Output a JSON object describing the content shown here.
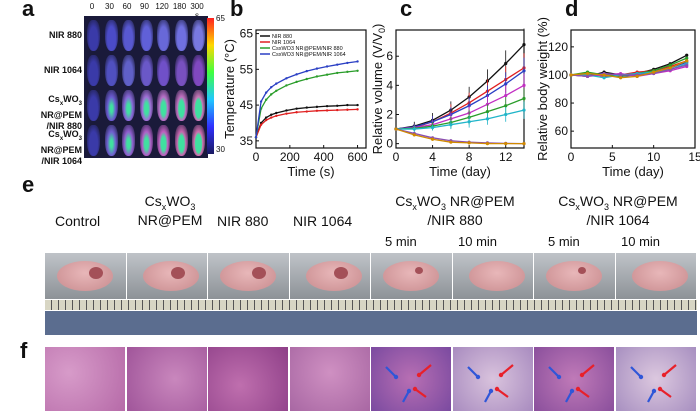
{
  "panel_a": {
    "label": "a",
    "times": [
      "0",
      "30",
      "60",
      "90",
      "120",
      "180",
      "300 s"
    ],
    "rows": [
      "NIR 880",
      "NIR 1064",
      "CsxWO3 NR@PEM/NIR 880",
      "CsxWO3 NR@PEM/NIR 1064"
    ],
    "row_labels": [
      {
        "l1": "NIR 880",
        "l2": ""
      },
      {
        "l1": "NIR 1064",
        "l2": ""
      },
      {
        "l1": "Cs",
        "sub": "x",
        "l1b": "WO",
        "sub2": "3",
        "l1c": " NR@PEM",
        "l2": "/NIR 880"
      },
      {
        "l1": "Cs",
        "sub": "x",
        "l1b": "WO",
        "sub2": "3",
        "l1c": " NR@PEM",
        "l2": "/NIR 1064"
      }
    ],
    "colorbar_label": "Temperature (°C)",
    "colorbar_ticks": [
      "65",
      "30"
    ]
  },
  "panel_b": {
    "label": "b",
    "chart_data": {
      "type": "line",
      "xlabel": "Time (s)",
      "ylabel": "Temperature (°C)",
      "xlim": [
        0,
        650
      ],
      "ylim": [
        33,
        66
      ],
      "xticks": [
        0,
        200,
        400,
        600
      ],
      "yticks": [
        35,
        45,
        55,
        65
      ],
      "legend": [
        "NIR 880",
        "NIR 1064",
        "CsxWO3 NR@PEM/NIR 880",
        "CsxWO3 NR@PEM/NIR 1064"
      ],
      "legend_placement": "top-left",
      "series": [
        {
          "name": "NIR 880",
          "color": "#111111",
          "x": [
            0,
            30,
            60,
            90,
            120,
            180,
            240,
            300,
            360,
            420,
            480,
            540,
            600
          ],
          "y": [
            36,
            40,
            41.5,
            42.3,
            42.8,
            43.5,
            44,
            44.3,
            44.5,
            44.7,
            44.8,
            45,
            45
          ]
        },
        {
          "name": "NIR 1064",
          "color": "#e02020",
          "x": [
            0,
            30,
            60,
            90,
            120,
            180,
            240,
            300,
            360,
            420,
            480,
            540,
            600
          ],
          "y": [
            36,
            39.5,
            40.8,
            41.5,
            42,
            42.6,
            43,
            43.2,
            43.4,
            43.5,
            43.6,
            43.7,
            43.8
          ]
        },
        {
          "name": "CsxWO3 NR@PEM/NIR 880",
          "color": "#2a9d2a",
          "x": [
            0,
            30,
            60,
            90,
            120,
            180,
            240,
            300,
            360,
            420,
            480,
            540,
            600
          ],
          "y": [
            36,
            44,
            46.5,
            48,
            49,
            50.5,
            51.5,
            52.3,
            53,
            53.5,
            54,
            54.3,
            54.6
          ]
        },
        {
          "name": "CsxWO3 NR@PEM/NIR 1064",
          "color": "#2a3fc4",
          "x": [
            0,
            30,
            60,
            90,
            120,
            180,
            240,
            300,
            360,
            420,
            480,
            540,
            600
          ],
          "y": [
            36,
            46,
            48.5,
            50,
            51,
            52.5,
            53.6,
            54.5,
            55.2,
            55.8,
            56.3,
            56.8,
            57.2
          ]
        }
      ]
    }
  },
  "panel_c": {
    "label": "c",
    "chart_data": {
      "type": "line",
      "xlabel": "Time (day)",
      "ylabel": "Relative volume (V/V",
      "ylabel_sub": "0",
      "ylabel_end": ")",
      "xlim": [
        0,
        14
      ],
      "ylim": [
        -0.3,
        7.8
      ],
      "xticks": [
        0,
        4,
        8,
        12
      ],
      "yticks": [
        0,
        2,
        4,
        6
      ],
      "x": [
        0,
        2,
        4,
        6,
        8,
        10,
        12,
        14
      ],
      "series": [
        {
          "color": "#111111",
          "y": [
            1,
            1.2,
            1.6,
            2.3,
            3.2,
            4.3,
            5.5,
            6.8
          ],
          "err": [
            0.1,
            0.3,
            0.5,
            0.6,
            0.7,
            0.8,
            0.9,
            1.1
          ]
        },
        {
          "color": "#e02020",
          "y": [
            1,
            1.1,
            1.5,
            2.1,
            2.8,
            3.6,
            4.4,
            5.2
          ],
          "err": [
            0.1,
            0.2,
            0.4,
            0.6,
            0.7,
            0.8,
            0.9,
            1.0
          ]
        },
        {
          "color": "#2a3fc4",
          "y": [
            1,
            1.15,
            1.5,
            2.0,
            2.6,
            3.3,
            4.1,
            5.0
          ],
          "err": [
            0.1,
            0.2,
            0.4,
            0.5,
            0.6,
            0.7,
            0.8,
            0.9
          ]
        },
        {
          "color": "#c22fc2",
          "y": [
            1,
            1.1,
            1.3,
            1.7,
            2.1,
            2.7,
            3.3,
            4.0
          ],
          "err": [
            0.1,
            0.2,
            0.3,
            0.4,
            0.5,
            0.6,
            0.7,
            0.8
          ]
        },
        {
          "color": "#2a9d2a",
          "y": [
            1,
            1.05,
            1.2,
            1.45,
            1.8,
            2.2,
            2.6,
            3.1
          ],
          "err": [
            0.1,
            0.2,
            0.3,
            0.4,
            0.5,
            0.5,
            0.6,
            0.7
          ]
        },
        {
          "color": "#20b5c9",
          "y": [
            1,
            1,
            1.1,
            1.3,
            1.5,
            1.7,
            2.0,
            2.3
          ],
          "err": [
            0.1,
            0.2,
            0.2,
            0.3,
            0.4,
            0.4,
            0.5,
            0.6
          ]
        },
        {
          "color": "#8a4fb0",
          "y": [
            1,
            0.7,
            0.4,
            0.2,
            0.1,
            0.05,
            0.02,
            0
          ],
          "err": [
            0.1,
            0.1,
            0.1,
            0.1,
            0.1,
            0.05,
            0.05,
            0.05
          ]
        },
        {
          "color": "#d08a00",
          "y": [
            1,
            0.6,
            0.3,
            0.1,
            0.05,
            0,
            0,
            0
          ],
          "err": [
            0.1,
            0.1,
            0.1,
            0.05,
            0.05,
            0.05,
            0.05,
            0.05
          ]
        }
      ]
    }
  },
  "panel_d": {
    "label": "d",
    "chart_data": {
      "type": "line",
      "xlabel": "Time (day)",
      "ylabel": "Relative body weight (%)",
      "xlim": [
        0,
        15
      ],
      "ylim": [
        48,
        132
      ],
      "xticks": [
        0,
        5,
        10,
        15
      ],
      "yticks": [
        60,
        80,
        100,
        120
      ],
      "x": [
        0,
        2,
        4,
        6,
        8,
        10,
        12,
        14
      ],
      "series": [
        {
          "color": "#111111",
          "y": [
            100,
            99,
            102,
            100,
            101,
            104,
            108,
            114
          ]
        },
        {
          "color": "#e02020",
          "y": [
            100,
            101,
            99,
            100,
            102,
            103,
            106,
            110
          ]
        },
        {
          "color": "#2a3fc4",
          "y": [
            100,
            100,
            101,
            99,
            100,
            102,
            105,
            109
          ]
        },
        {
          "color": "#c22fc2",
          "y": [
            100,
            99,
            100,
            101,
            99,
            101,
            103,
            106
          ]
        },
        {
          "color": "#2a9d2a",
          "y": [
            100,
            102,
            100,
            99,
            101,
            103,
            107,
            112
          ]
        },
        {
          "color": "#20b5c9",
          "y": [
            100,
            100,
            98,
            100,
            101,
            102,
            104,
            108
          ]
        },
        {
          "color": "#8a4fb0",
          "y": [
            100,
            99,
            101,
            100,
            100,
            101,
            104,
            107
          ]
        },
        {
          "color": "#d08a00",
          "y": [
            100,
            101,
            100,
            98,
            99,
            102,
            105,
            110
          ]
        }
      ]
    }
  },
  "panel_e": {
    "label": "e",
    "groups": [
      {
        "l1": "Control",
        "l2": ""
      },
      {
        "l1": "Cs",
        "sub": "x",
        "l1b": "WO",
        "sub2": "3",
        "l2": "NR@PEM"
      },
      {
        "l1": "NIR 880",
        "l2": ""
      },
      {
        "l1": "NIR 1064",
        "l2": ""
      }
    ],
    "nr880": {
      "l1": "Cs",
      "sub": "x",
      "l1b": "WO",
      "sub2": "3",
      "l1c": " NR@PEM",
      "l2": "/NIR 880",
      "t1": "5 min",
      "t2": "10 min"
    },
    "nr1064": {
      "l1": "Cs",
      "sub": "x",
      "l1b": "WO",
      "sub2": "3",
      "l1c": " NR@PEM",
      "l2": "/NIR 1064",
      "t1": "5 min",
      "t2": "10 min"
    }
  },
  "panel_f": {
    "label": "f"
  },
  "colors": {
    "hist_pink": "#c57ab8",
    "hist_purple": "#7a4aa0",
    "arrow_red": "#e8202a",
    "arrow_blue": "#2f56d8"
  }
}
